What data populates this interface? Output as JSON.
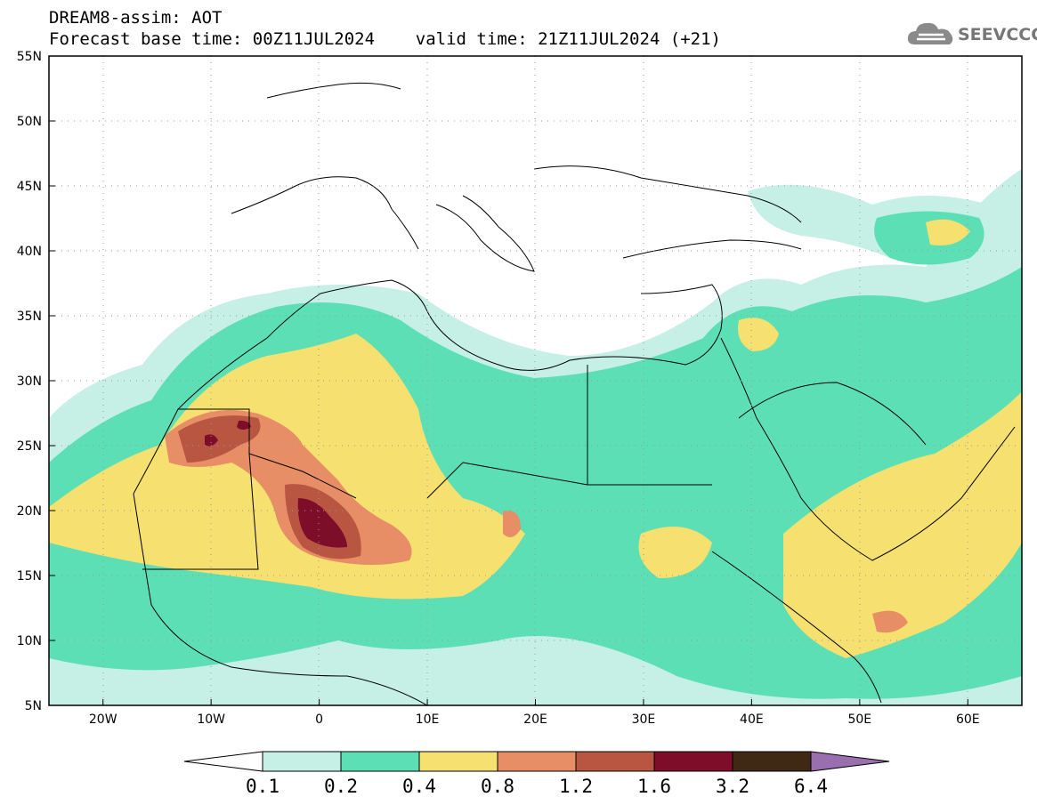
{
  "title": {
    "line1": "DREAM8-assim: AOT",
    "line2": "Forecast base time: 00Z11JUL2024    valid time: 21Z11JUL2024 (+21)"
  },
  "logo": {
    "text": "SEEVCCC",
    "icon": "cloud-icon"
  },
  "axes": {
    "lat_ticks": [
      "55N",
      "50N",
      "45N",
      "40N",
      "35N",
      "30N",
      "25N",
      "20N",
      "15N",
      "10N",
      "5N"
    ],
    "lon_ticks": [
      "20W",
      "10W",
      "0",
      "10E",
      "20E",
      "30E",
      "40E",
      "50E",
      "60E"
    ],
    "lat_range": [
      5,
      55
    ],
    "lon_range": [
      -25,
      65
    ]
  },
  "colorbar": {
    "labels": [
      "0.1",
      "0.2",
      "0.4",
      "0.8",
      "1.2",
      "1.6",
      "3.2",
      "6.4"
    ],
    "colors": [
      "#ffffff",
      "#c6efe5",
      "#5ddfb5",
      "#f5e070",
      "#e88e66",
      "#b85642",
      "#7e0d2a",
      "#3f2915",
      "#9a6fb0"
    ]
  },
  "colors": {
    "land_outline": "#000000",
    "background": "#ffffff"
  }
}
